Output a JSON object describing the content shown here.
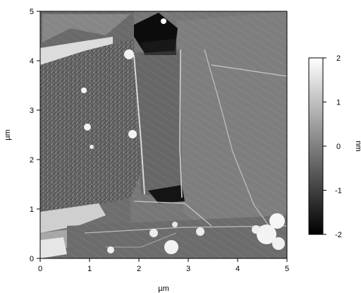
{
  "chart_data": {
    "type": "heatmap",
    "title": "",
    "xlabel": "µm",
    "ylabel": "µm",
    "xlim": [
      0,
      5
    ],
    "ylim": [
      0,
      5
    ],
    "x_ticks": [
      "0",
      "1",
      "2",
      "3",
      "4",
      "5"
    ],
    "y_ticks": [
      "0",
      "1",
      "2",
      "3",
      "4",
      "5"
    ],
    "colorbar": {
      "label": "nm",
      "range": [
        -2,
        2
      ],
      "ticks": [
        "-2",
        "-1",
        "0",
        "1",
        "2"
      ],
      "colormap": "grayscale",
      "low_color": "#000000",
      "high_color": "#ffffff"
    },
    "grid": false,
    "legend": "none"
  }
}
